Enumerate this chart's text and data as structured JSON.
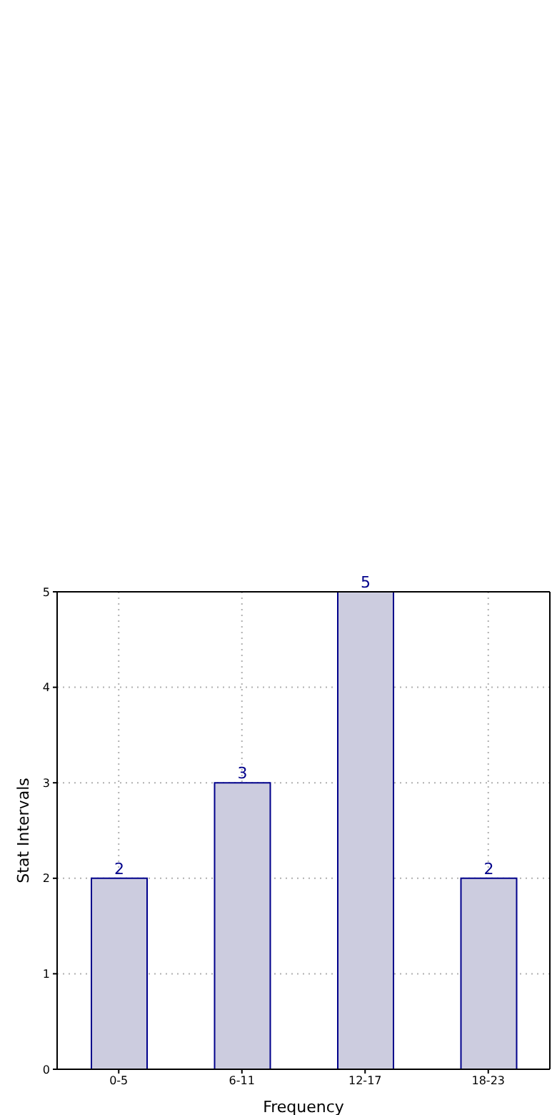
{
  "chart_data": {
    "type": "bar",
    "xlabel": "Frequency",
    "ylabel": "Stat Intervals",
    "categories": [
      "0-5",
      "6-11",
      "12-17",
      "18-23"
    ],
    "values": [
      2,
      3,
      5,
      2
    ],
    "color": "#ccccdf",
    "ylim": [
      0,
      5
    ],
    "yticks": [
      0,
      1,
      2,
      3,
      4,
      5
    ],
    "grid": true,
    "data_labels": true
  }
}
